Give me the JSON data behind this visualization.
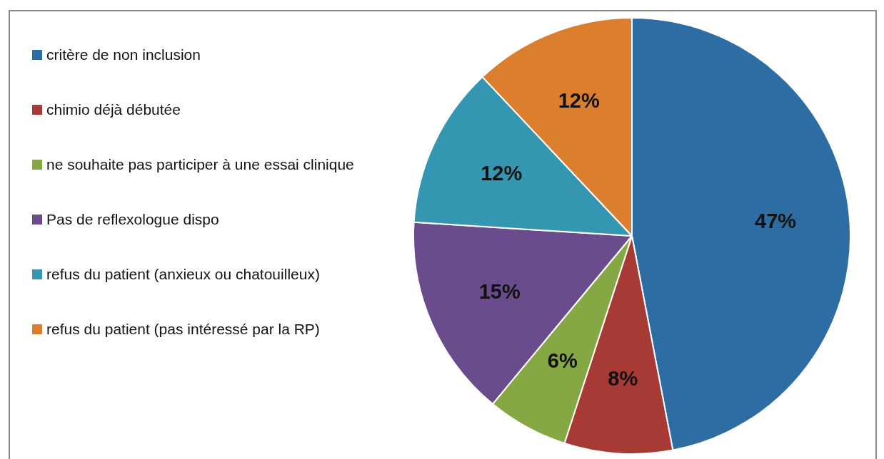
{
  "chart_data": {
    "type": "pie",
    "categories": [
      "critère de non inclusion",
      "chimio déjà débutée",
      "ne souhaite pas participer à une essai clinique",
      "Pas de reflexologue dispo",
      "refus du patient (anxieux ou chatouilleux)",
      "refus du patient (pas intéressé par la RP)"
    ],
    "values": [
      47,
      8,
      6,
      15,
      12,
      12
    ],
    "colors": [
      "#2e6da4",
      "#a83a36",
      "#86a844",
      "#6a4c8c",
      "#3496b0",
      "#db7f2e"
    ],
    "value_labels": [
      "47%",
      "8%",
      "6%",
      "15%",
      "12%",
      "12%"
    ],
    "legend": "left"
  }
}
